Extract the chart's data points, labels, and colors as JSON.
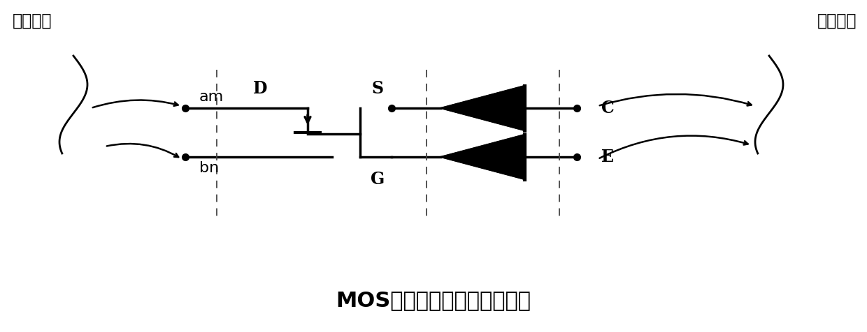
{
  "title": "MOS无源位权型量化逻辑电路",
  "title_fontsize": 22,
  "label_fontsize": 17,
  "small_label_fontsize": 15,
  "bg_color": "#ffffff",
  "fg_color": "#000000",
  "left_label": "权值输入",
  "right_label": "分形输出",
  "input_am": "am",
  "input_bn": "bn",
  "output_C": "C",
  "output_E": "E",
  "label_D": "D",
  "label_S": "S",
  "label_G": "G",
  "fig_width": 12.4,
  "fig_height": 4.76,
  "dpi": 100
}
